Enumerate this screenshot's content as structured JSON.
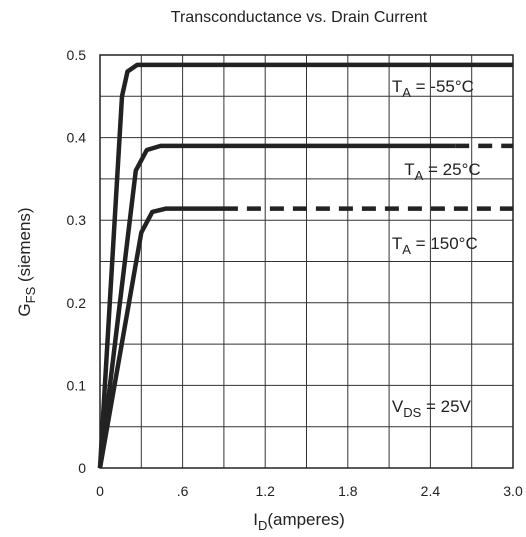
{
  "chart_data": {
    "type": "line",
    "title": "Transconductance vs. Drain Current",
    "xlabel": {
      "main": "I",
      "sub": "D",
      "rest": "(amperes)"
    },
    "ylabel": {
      "main": "G",
      "sub": "FS",
      "rest": " (siemens)"
    },
    "xlim": [
      0,
      3.0
    ],
    "ylim": [
      0,
      0.5
    ],
    "x_ticks": [
      {
        "v": 0,
        "label": "0"
      },
      {
        "v": 0.6,
        "label": ".6"
      },
      {
        "v": 1.2,
        "label": "1.2"
      },
      {
        "v": 1.8,
        "label": "1.8"
      },
      {
        "v": 2.4,
        "label": "2.4"
      },
      {
        "v": 3.0,
        "label": "3.0"
      }
    ],
    "y_ticks": [
      {
        "v": 0,
        "label": "0"
      },
      {
        "v": 0.1,
        "label": "0.1"
      },
      {
        "v": 0.2,
        "label": "0.2"
      },
      {
        "v": 0.3,
        "label": "0.3"
      },
      {
        "v": 0.4,
        "label": "0.4"
      },
      {
        "v": 0.5,
        "label": "0.5"
      }
    ],
    "x_grid": [
      0.3,
      0.6,
      0.9,
      1.2,
      1.5,
      1.8,
      2.1,
      2.4,
      2.7
    ],
    "y_grid": [
      0.05,
      0.1,
      0.15,
      0.2,
      0.25,
      0.3,
      0.35,
      0.4,
      0.45
    ],
    "grid": true,
    "series": [
      {
        "name": "T_A = -55°C",
        "solid": [
          [
            0,
            0
          ],
          [
            0.16,
            0.45
          ],
          [
            0.2,
            0.48
          ],
          [
            0.27,
            0.488
          ],
          [
            3.0,
            0.488
          ]
        ],
        "dashed": []
      },
      {
        "name": "T_A = 25°C",
        "solid": [
          [
            0,
            0
          ],
          [
            0.26,
            0.36
          ],
          [
            0.34,
            0.385
          ],
          [
            0.44,
            0.39
          ],
          [
            2.58,
            0.39
          ]
        ],
        "dashed": [
          [
            2.58,
            0.39
          ],
          [
            3.0,
            0.39
          ]
        ]
      },
      {
        "name": "T_A = 150°C",
        "solid": [
          [
            0,
            0
          ],
          [
            0.3,
            0.285
          ],
          [
            0.38,
            0.31
          ],
          [
            0.48,
            0.314
          ],
          [
            0.9,
            0.314
          ]
        ],
        "dashed": [
          [
            0.9,
            0.314
          ],
          [
            3.0,
            0.314
          ]
        ]
      }
    ],
    "annotations": [
      {
        "main": "T",
        "sub": "A",
        "rest": " = -55°C",
        "x": 2.12,
        "y": 0.455
      },
      {
        "main": "T",
        "sub": "A",
        "rest": " = 25°C",
        "x": 2.21,
        "y": 0.355
      },
      {
        "main": "T",
        "sub": "A",
        "rest": " = 150°C",
        "x": 2.12,
        "y": 0.265
      },
      {
        "main": "V",
        "sub": "DS",
        "rest": "  = 25V",
        "x": 2.12,
        "y": 0.068
      }
    ]
  }
}
